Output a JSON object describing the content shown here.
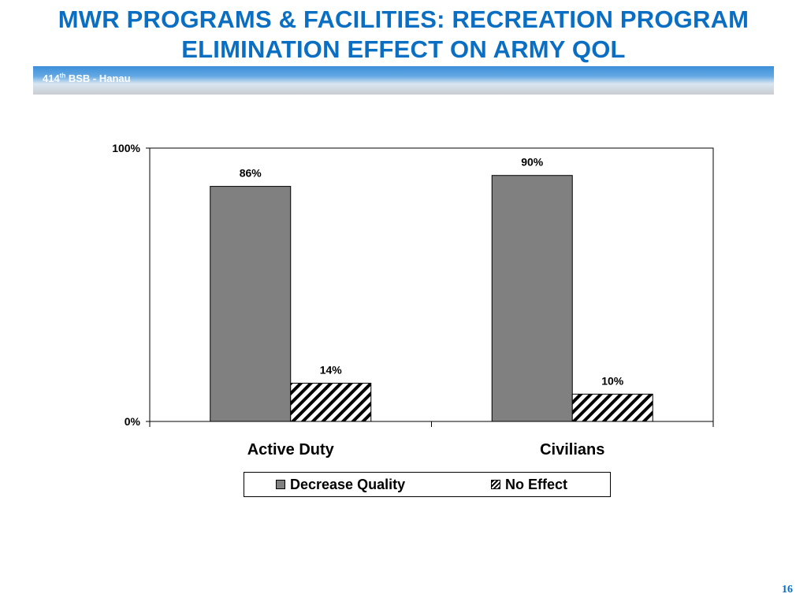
{
  "slide": {
    "title_line1": "MWR PROGRAMS & FACILITIES: RECREATION PROGRAM",
    "title_line2": "ELIMINATION EFFECT ON ARMY QOL",
    "banner_main": "414",
    "banner_sup": "th",
    "banner_rest": " BSB - Hanau",
    "page_number": "16"
  },
  "colors": {
    "title": "#0a6fc2",
    "decrease_quality": "#808080",
    "no_effect_hatch": "#000000"
  },
  "chart_data": {
    "type": "bar",
    "categories": [
      "Active Duty",
      "Civilians"
    ],
    "series": [
      {
        "name": "Decrease Quality",
        "values": [
          86,
          90
        ],
        "labels": [
          "86%",
          "90%"
        ]
      },
      {
        "name": "No Effect",
        "values": [
          14,
          10
        ],
        "labels": [
          "14%",
          "10%"
        ]
      }
    ],
    "ylim": [
      0,
      100
    ],
    "y_tick_labels": [
      "0%",
      "100%"
    ],
    "grid": false,
    "legend_position": "bottom"
  }
}
